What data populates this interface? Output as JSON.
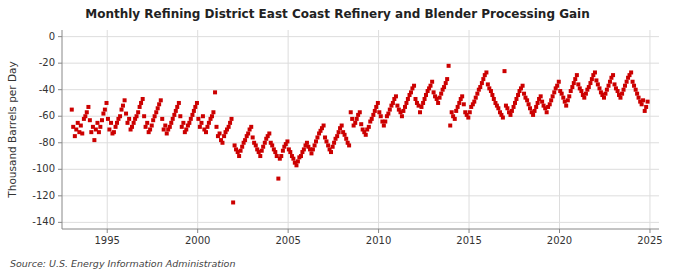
{
  "chart_data": {
    "type": "scatter",
    "title": "Monthly Refining District East Coast Refinery and Blender Processing Gain",
    "y_label": "Thousand Barrels per Day",
    "annotations": [
      "Source: U.S. Energy Information Administration"
    ],
    "color": "#cc0000",
    "marker": "square",
    "grid": true,
    "xlim": [
      1992.5,
      2025.5
    ],
    "ylim": [
      -145,
      5
    ],
    "xticks": [
      1995,
      2000,
      2005,
      2010,
      2015,
      2020,
      2025
    ],
    "yticks": [
      0,
      -20,
      -40,
      -60,
      -80,
      -100,
      -120,
      -140
    ],
    "x": [
      1993.04,
      1993.12,
      1993.21,
      1993.29,
      1993.37,
      1993.46,
      1993.54,
      1993.62,
      1993.71,
      1993.79,
      1993.87,
      1993.96,
      1994.04,
      1994.12,
      1994.21,
      1994.29,
      1994.37,
      1994.46,
      1994.54,
      1994.62,
      1994.71,
      1994.79,
      1994.87,
      1994.96,
      1995.04,
      1995.12,
      1995.21,
      1995.29,
      1995.37,
      1995.46,
      1995.54,
      1995.62,
      1995.71,
      1995.79,
      1995.87,
      1995.96,
      1996.04,
      1996.12,
      1996.21,
      1996.29,
      1996.37,
      1996.46,
      1996.54,
      1996.62,
      1996.71,
      1996.79,
      1996.87,
      1996.96,
      1997.04,
      1997.12,
      1997.21,
      1997.29,
      1997.37,
      1997.46,
      1997.54,
      1997.62,
      1997.71,
      1997.79,
      1997.87,
      1997.96,
      1998.04,
      1998.12,
      1998.21,
      1998.29,
      1998.37,
      1998.46,
      1998.54,
      1998.62,
      1998.71,
      1998.79,
      1998.87,
      1998.96,
      1999.04,
      1999.12,
      1999.21,
      1999.29,
      1999.37,
      1999.46,
      1999.54,
      1999.62,
      1999.71,
      1999.79,
      1999.87,
      1999.96,
      2000.04,
      2000.12,
      2000.21,
      2000.29,
      2000.37,
      2000.46,
      2000.54,
      2000.62,
      2000.71,
      2000.79,
      2000.87,
      2000.96,
      2001.04,
      2001.12,
      2001.21,
      2001.29,
      2001.37,
      2001.46,
      2001.54,
      2001.62,
      2001.71,
      2001.79,
      2001.87,
      2001.96,
      2002.04,
      2002.12,
      2002.21,
      2002.29,
      2002.37,
      2002.46,
      2002.54,
      2002.62,
      2002.71,
      2002.79,
      2002.87,
      2002.96,
      2003.04,
      2003.12,
      2003.21,
      2003.29,
      2003.37,
      2003.46,
      2003.54,
      2003.62,
      2003.71,
      2003.79,
      2003.87,
      2003.96,
      2004.04,
      2004.12,
      2004.21,
      2004.29,
      2004.37,
      2004.46,
      2004.54,
      2004.62,
      2004.71,
      2004.79,
      2004.87,
      2004.96,
      2005.04,
      2005.12,
      2005.21,
      2005.29,
      2005.37,
      2005.46,
      2005.54,
      2005.62,
      2005.71,
      2005.79,
      2005.87,
      2005.96,
      2006.04,
      2006.12,
      2006.21,
      2006.29,
      2006.37,
      2006.46,
      2006.54,
      2006.62,
      2006.71,
      2006.79,
      2006.87,
      2006.96,
      2007.04,
      2007.12,
      2007.21,
      2007.29,
      2007.37,
      2007.46,
      2007.54,
      2007.62,
      2007.71,
      2007.79,
      2007.87,
      2007.96,
      2008.04,
      2008.12,
      2008.21,
      2008.29,
      2008.37,
      2008.46,
      2008.54,
      2008.62,
      2008.71,
      2008.79,
      2008.87,
      2008.96,
      2009.04,
      2009.12,
      2009.21,
      2009.29,
      2009.37,
      2009.46,
      2009.54,
      2009.62,
      2009.71,
      2009.79,
      2009.87,
      2009.96,
      2010.04,
      2010.12,
      2010.21,
      2010.29,
      2010.37,
      2010.46,
      2010.54,
      2010.62,
      2010.71,
      2010.79,
      2010.87,
      2010.96,
      2011.04,
      2011.12,
      2011.21,
      2011.29,
      2011.37,
      2011.46,
      2011.54,
      2011.62,
      2011.71,
      2011.79,
      2011.87,
      2011.96,
      2012.04,
      2012.12,
      2012.21,
      2012.29,
      2012.37,
      2012.46,
      2012.54,
      2012.62,
      2012.71,
      2012.79,
      2012.87,
      2012.96,
      2013.04,
      2013.12,
      2013.21,
      2013.29,
      2013.37,
      2013.46,
      2013.54,
      2013.62,
      2013.71,
      2013.79,
      2013.87,
      2013.96,
      2014.04,
      2014.12,
      2014.21,
      2014.29,
      2014.37,
      2014.46,
      2014.54,
      2014.62,
      2014.71,
      2014.79,
      2014.87,
      2014.96,
      2015.04,
      2015.12,
      2015.21,
      2015.29,
      2015.37,
      2015.46,
      2015.54,
      2015.62,
      2015.71,
      2015.79,
      2015.87,
      2015.96,
      2016.04,
      2016.12,
      2016.21,
      2016.29,
      2016.37,
      2016.46,
      2016.54,
      2016.62,
      2016.71,
      2016.79,
      2016.87,
      2016.96,
      2017.04,
      2017.12,
      2017.21,
      2017.29,
      2017.37,
      2017.46,
      2017.54,
      2017.62,
      2017.71,
      2017.79,
      2017.87,
      2017.96,
      2018.04,
      2018.12,
      2018.21,
      2018.29,
      2018.37,
      2018.46,
      2018.54,
      2018.62,
      2018.71,
      2018.79,
      2018.87,
      2018.96,
      2019.04,
      2019.12,
      2019.21,
      2019.29,
      2019.37,
      2019.46,
      2019.54,
      2019.62,
      2019.71,
      2019.79,
      2019.87,
      2019.96,
      2020.04,
      2020.12,
      2020.21,
      2020.29,
      2020.37,
      2020.46,
      2020.54,
      2020.62,
      2020.71,
      2020.79,
      2020.87,
      2020.96,
      2021.04,
      2021.12,
      2021.21,
      2021.29,
      2021.37,
      2021.46,
      2021.54,
      2021.62,
      2021.71,
      2021.79,
      2021.87,
      2021.96,
      2022.04,
      2022.12,
      2022.21,
      2022.29,
      2022.37,
      2022.46,
      2022.54,
      2022.62,
      2022.71,
      2022.79,
      2022.87,
      2022.96,
      2023.04,
      2023.12,
      2023.21,
      2023.29,
      2023.37,
      2023.46,
      2023.54,
      2023.62,
      2023.71,
      2023.79,
      2023.87,
      2023.96,
      2024.04,
      2024.12,
      2024.21,
      2024.29,
      2024.37,
      2024.46,
      2024.54,
      2024.62,
      2024.71,
      2024.79,
      2024.87
    ],
    "values": [
      -55,
      -68,
      -75,
      -70,
      -65,
      -72,
      -67,
      -73,
      -62,
      -60,
      -57,
      -53,
      -63,
      -72,
      -68,
      -78,
      -70,
      -65,
      -72,
      -68,
      -63,
      -58,
      -55,
      -50,
      -62,
      -70,
      -65,
      -73,
      -72,
      -68,
      -65,
      -62,
      -60,
      -55,
      -52,
      -48,
      -58,
      -65,
      -62,
      -70,
      -68,
      -65,
      -62,
      -60,
      -57,
      -53,
      -50,
      -47,
      -60,
      -68,
      -65,
      -72,
      -70,
      -67,
      -63,
      -60,
      -57,
      -54,
      -51,
      -48,
      -62,
      -70,
      -67,
      -73,
      -70,
      -68,
      -65,
      -62,
      -59,
      -56,
      -53,
      -50,
      -60,
      -68,
      -65,
      -72,
      -70,
      -67,
      -65,
      -62,
      -59,
      -56,
      -53,
      -50,
      -62,
      -68,
      -65,
      -60,
      -70,
      -72,
      -68,
      -65,
      -62,
      -60,
      -57,
      -42,
      -68,
      -75,
      -73,
      -78,
      -80,
      -75,
      -72,
      -70,
      -68,
      -65,
      -62,
      -125,
      -82,
      -85,
      -87,
      -90,
      -86,
      -83,
      -80,
      -78,
      -75,
      -73,
      -70,
      -68,
      -76,
      -80,
      -82,
      -85,
      -87,
      -90,
      -86,
      -83,
      -80,
      -77,
      -75,
      -73,
      -80,
      -82,
      -85,
      -87,
      -90,
      -107,
      -92,
      -90,
      -86,
      -83,
      -81,
      -79,
      -85,
      -87,
      -90,
      -92,
      -95,
      -97,
      -94,
      -91,
      -90,
      -87,
      -85,
      -82,
      -80,
      -83,
      -85,
      -88,
      -85,
      -82,
      -79,
      -76,
      -73,
      -71,
      -69,
      -67,
      -76,
      -79,
      -82,
      -85,
      -87,
      -83,
      -80,
      -77,
      -75,
      -72,
      -69,
      -67,
      -72,
      -74,
      -77,
      -80,
      -82,
      -57,
      -62,
      -67,
      -65,
      -62,
      -59,
      -57,
      -66,
      -70,
      -72,
      -74,
      -70,
      -68,
      -64,
      -62,
      -59,
      -56,
      -53,
      -50,
      -57,
      -60,
      -64,
      -67,
      -64,
      -60,
      -58,
      -55,
      -52,
      -50,
      -47,
      -45,
      -52,
      -55,
      -57,
      -60,
      -56,
      -53,
      -50,
      -47,
      -44,
      -42,
      -39,
      -37,
      -47,
      -50,
      -52,
      -57,
      -53,
      -50,
      -47,
      -44,
      -41,
      -39,
      -37,
      -34,
      -42,
      -45,
      -47,
      -50,
      -46,
      -43,
      -40,
      -38,
      -35,
      -32,
      -22,
      -67,
      -57,
      -60,
      -62,
      -56,
      -53,
      -50,
      -47,
      -45,
      -51,
      -57,
      -59,
      -61,
      -57,
      -53,
      -51,
      -49,
      -46,
      -43,
      -40,
      -38,
      -35,
      -32,
      -29,
      -27,
      -36,
      -39,
      -41,
      -44,
      -47,
      -50,
      -52,
      -54,
      -57,
      -59,
      -61,
      -26,
      -52,
      -54,
      -57,
      -59,
      -56,
      -53,
      -50,
      -47,
      -44,
      -41,
      -39,
      -37,
      -43,
      -46,
      -48,
      -51,
      -54,
      -57,
      -59,
      -56,
      -53,
      -50,
      -47,
      -45,
      -49,
      -52,
      -54,
      -57,
      -53,
      -51,
      -48,
      -45,
      -42,
      -39,
      -37,
      -34,
      -41,
      -43,
      -46,
      -49,
      -52,
      -48,
      -45,
      -41,
      -38,
      -35,
      -32,
      -29,
      -36,
      -39,
      -41,
      -44,
      -46,
      -43,
      -40,
      -38,
      -35,
      -32,
      -29,
      -27,
      -33,
      -36,
      -39,
      -42,
      -44,
      -46,
      -43,
      -40,
      -37,
      -34,
      -31,
      -29,
      -36,
      -39,
      -41,
      -44,
      -46,
      -43,
      -40,
      -37,
      -34,
      -31,
      -29,
      -27,
      -34,
      -37,
      -40,
      -43,
      -46,
      -49,
      -51,
      -48,
      -56,
      -53,
      -49
    ]
  }
}
